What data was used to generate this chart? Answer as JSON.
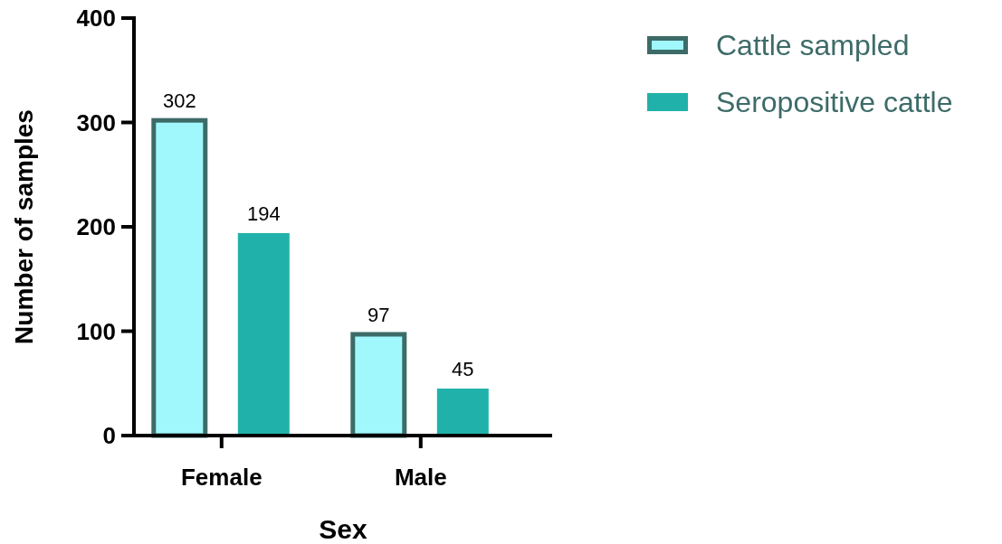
{
  "chart_data": {
    "type": "bar",
    "xlabel": "Sex",
    "ylabel": "Number of samples",
    "categories": [
      "Female",
      "Male"
    ],
    "series": [
      {
        "name": "Cattle sampled",
        "color": "#a0f8fc",
        "values": [
          302,
          97
        ]
      },
      {
        "name": "Seropositive cattle",
        "color": "#20b2aa",
        "values": [
          194,
          45
        ]
      }
    ],
    "ylim": [
      0,
      400
    ],
    "yticks": [
      0,
      100,
      200,
      300,
      400
    ],
    "data_labels": true,
    "legend": "top right",
    "grid": false
  }
}
